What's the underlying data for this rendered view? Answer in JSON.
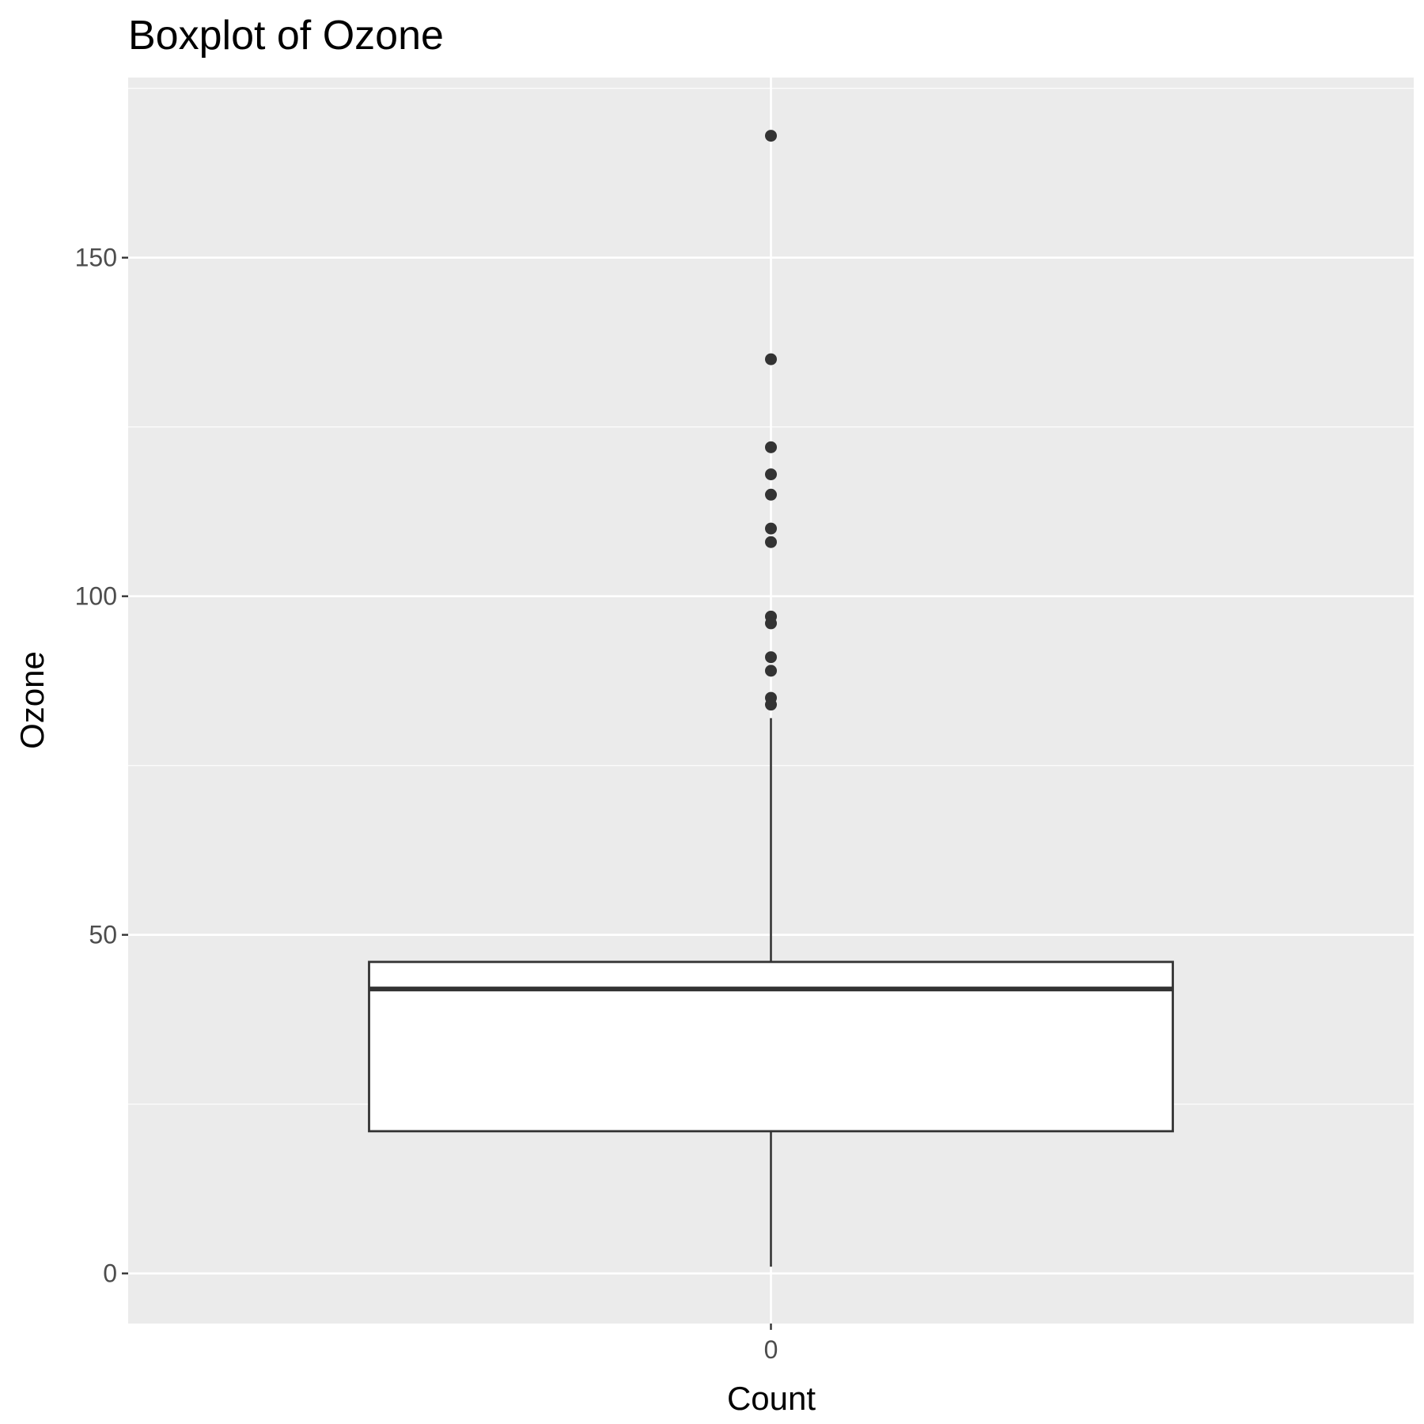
{
  "chart_data": {
    "type": "boxplot",
    "title": "Boxplot of Ozone",
    "xlabel": "Count",
    "ylabel": "Ozone",
    "x_categories": [
      "0"
    ],
    "y_ticks": [
      0,
      50,
      100,
      150
    ],
    "y_tick_labels": [
      "0",
      "50",
      "100",
      "150"
    ],
    "ylim": [
      -7.4,
      176.6
    ],
    "grid": true,
    "box": {
      "category": "0",
      "lower_whisker": 1,
      "q1": 21,
      "median": 42,
      "q3": 46,
      "upper_whisker": 82,
      "outliers": [
        168,
        135,
        122,
        118,
        115,
        110,
        108,
        97,
        96,
        91,
        89,
        85,
        84
      ]
    },
    "colors": {
      "panel_background": "#ebebeb",
      "grid_major": "#ffffff",
      "box_fill": "#ffffff",
      "box_outline": "#333333",
      "outlier": "#333333"
    }
  }
}
